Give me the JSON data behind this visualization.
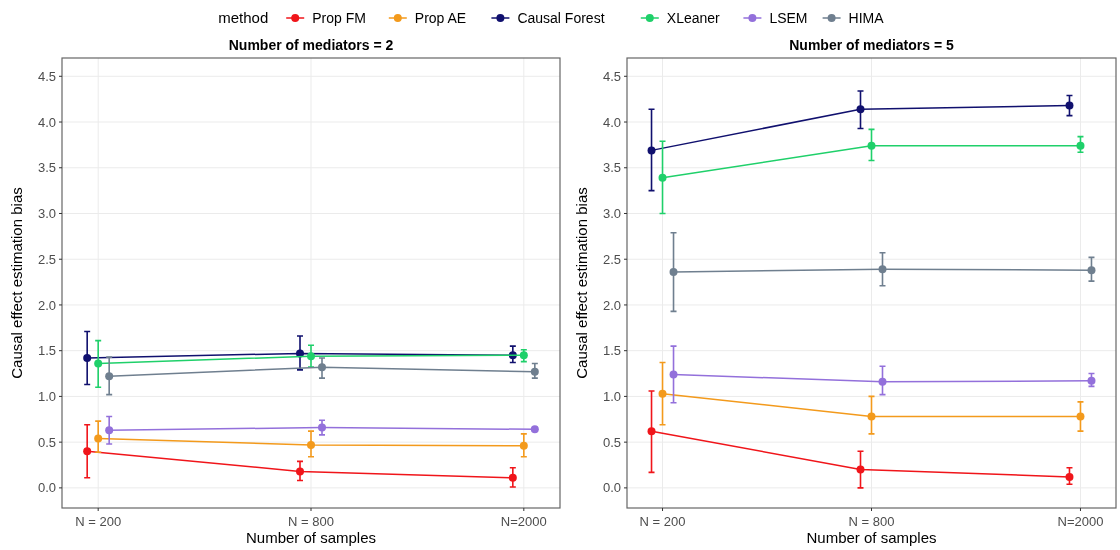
{
  "chart_data": [
    {
      "type": "line",
      "title": "Number of mediators = 2",
      "xlabel": "Number of samples",
      "ylabel": "Causal effect estimation bias",
      "legend_title": "method",
      "legend": "top",
      "grid": true,
      "marker": "circle",
      "line_style": "solid",
      "categories": [
        "N = 200",
        "N = 800",
        "N=2000"
      ],
      "ylim": [
        -0.22,
        4.7
      ],
      "yticks": [
        {
          "value": 0,
          "label": "0.0"
        },
        {
          "value": 0.5,
          "label": "0.5"
        },
        {
          "value": 1,
          "label": "1.0"
        },
        {
          "value": 1.5,
          "label": "1.5"
        },
        {
          "value": 2,
          "label": "2.0"
        },
        {
          "value": 2.5,
          "label": "2.5"
        },
        {
          "value": 3,
          "label": "3.0"
        },
        {
          "value": 3.5,
          "label": "3.5"
        },
        {
          "value": 4,
          "label": "4.0"
        },
        {
          "value": 4.5,
          "label": "4.5"
        }
      ],
      "series": [
        {
          "name": "Prop FM",
          "color": "#f0151a",
          "values": [
            0.4,
            0.18,
            0.11
          ],
          "errors": [
            [
              0.11,
              0.69
            ],
            [
              0.08,
              0.29
            ],
            [
              0.01,
              0.22
            ]
          ]
        },
        {
          "name": "Prop AE",
          "color": "#f39a1c",
          "values": [
            0.54,
            0.47,
            0.46
          ],
          "errors": [
            [
              0.39,
              0.73
            ],
            [
              0.34,
              0.62
            ],
            [
              0.34,
              0.59
            ]
          ]
        },
        {
          "name": "Causal Forest",
          "color": "#10106e",
          "values": [
            1.42,
            1.47,
            1.45
          ],
          "errors": [
            [
              1.13,
              1.71
            ],
            [
              1.29,
              1.66
            ],
            [
              1.37,
              1.55
            ]
          ]
        },
        {
          "name": "XLeaner",
          "color": "#1fd06a",
          "values": [
            1.36,
            1.44,
            1.45
          ],
          "errors": [
            [
              1.1,
              1.61
            ],
            [
              1.32,
              1.56
            ],
            [
              1.38,
              1.51
            ]
          ]
        },
        {
          "name": "LSEM",
          "color": "#9370db",
          "values": [
            0.63,
            0.66,
            0.64
          ],
          "errors": [
            [
              0.48,
              0.78
            ],
            [
              0.58,
              0.74
            ],
            [
              0.62,
              0.66
            ]
          ]
        },
        {
          "name": "HIMA",
          "color": "#6f7f8f",
          "values": [
            1.22,
            1.32,
            1.27
          ],
          "errors": [
            [
              1.02,
              1.43
            ],
            [
              1.2,
              1.42
            ],
            [
              1.2,
              1.36
            ]
          ]
        }
      ]
    },
    {
      "type": "line",
      "title": "Number of mediators = 5",
      "xlabel": "Number of samples",
      "ylabel": "Causal effect estimation bias",
      "grid": true,
      "marker": "circle",
      "line_style": "solid",
      "categories": [
        "N = 200",
        "N = 800",
        "N=2000"
      ],
      "ylim": [
        -0.22,
        4.7
      ],
      "yticks": [
        {
          "value": 0,
          "label": "0.0"
        },
        {
          "value": 0.5,
          "label": "0.5"
        },
        {
          "value": 1,
          "label": "1.0"
        },
        {
          "value": 1.5,
          "label": "1.5"
        },
        {
          "value": 2,
          "label": "2.0"
        },
        {
          "value": 2.5,
          "label": "2.5"
        },
        {
          "value": 3,
          "label": "3.0"
        },
        {
          "value": 3.5,
          "label": "3.5"
        },
        {
          "value": 4,
          "label": "4.0"
        },
        {
          "value": 4.5,
          "label": "4.5"
        }
      ],
      "series": [
        {
          "color": "#f0151a",
          "values": [
            0.62,
            0.2,
            0.12
          ],
          "errors": [
            [
              0.17,
              1.06
            ],
            [
              0.0,
              0.4
            ],
            [
              0.04,
              0.22
            ]
          ]
        },
        {
          "color": "#f39a1c",
          "values": [
            1.03,
            0.78,
            0.78
          ],
          "errors": [
            [
              0.69,
              1.37
            ],
            [
              0.59,
              1.0
            ],
            [
              0.62,
              0.94
            ]
          ]
        },
        {
          "color": "#10106e",
          "values": [
            3.69,
            4.14,
            4.18
          ],
          "errors": [
            [
              3.25,
              4.14
            ],
            [
              3.93,
              4.34
            ],
            [
              4.07,
              4.29
            ]
          ]
        },
        {
          "color": "#1fd06a",
          "values": [
            3.39,
            3.74,
            3.74
          ],
          "errors": [
            [
              3.0,
              3.79
            ],
            [
              3.58,
              3.92
            ],
            [
              3.67,
              3.84
            ]
          ]
        },
        {
          "color": "#9370db",
          "values": [
            1.24,
            1.16,
            1.17
          ],
          "errors": [
            [
              0.93,
              1.55
            ],
            [
              1.02,
              1.33
            ],
            [
              1.11,
              1.25
            ]
          ]
        },
        {
          "color": "#6f7f8f",
          "values": [
            2.36,
            2.39,
            2.38
          ],
          "errors": [
            [
              1.93,
              2.79
            ],
            [
              2.21,
              2.57
            ],
            [
              2.26,
              2.52
            ]
          ]
        }
      ]
    }
  ]
}
